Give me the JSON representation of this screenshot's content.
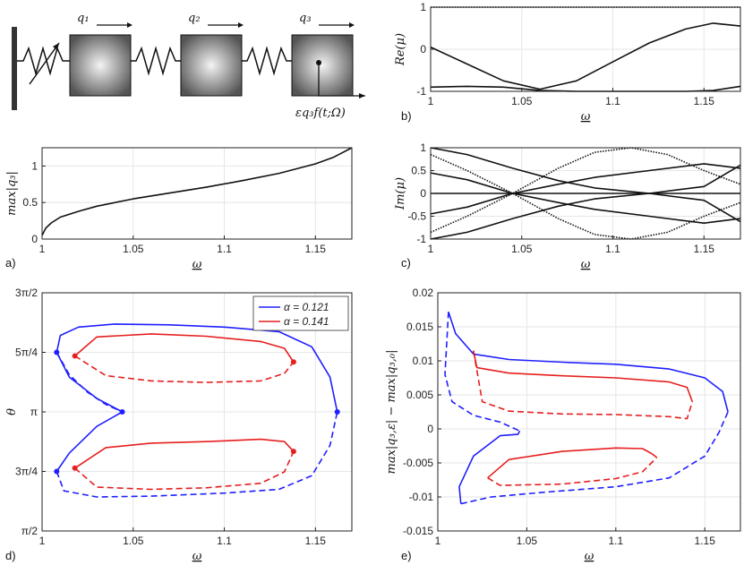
{
  "diagram": {
    "q1": "q₁",
    "q2": "q₂",
    "q3": "q₃",
    "forcing": "εq₃f(t;Ω)"
  },
  "panel_labels": {
    "a": "a)",
    "b": "b)",
    "c": "c)",
    "d": "d)",
    "e": "e)"
  },
  "colors": {
    "blue": "#1f1fff",
    "red": "#e61e1e",
    "black": "#111111",
    "grid": "#e6e6e6"
  },
  "chart_data": [
    {
      "id": "a",
      "type": "line",
      "title": "",
      "xlabel": "ω",
      "ylabel": "max|q₃|",
      "xlim": [
        1,
        1.17
      ],
      "ylim": [
        0,
        1.25
      ],
      "xticks": [
        1,
        1.05,
        1.1,
        1.15
      ],
      "xtick_labels": [
        "1",
        "1.05",
        "1.1",
        "1.15"
      ],
      "yticks": [
        0,
        0.5,
        1
      ],
      "ytick_labels": [
        "0",
        "0.5",
        "1"
      ],
      "series": [
        {
          "name": "max|q3|",
          "color": "#111111",
          "dash": false,
          "x": [
            1,
            1.002,
            1.005,
            1.01,
            1.02,
            1.03,
            1.05,
            1.07,
            1.09,
            1.11,
            1.13,
            1.15,
            1.16,
            1.17
          ],
          "y": [
            0.05,
            0.15,
            0.22,
            0.3,
            0.38,
            0.45,
            0.55,
            0.63,
            0.71,
            0.8,
            0.9,
            1.03,
            1.12,
            1.25
          ]
        }
      ]
    },
    {
      "id": "b",
      "type": "line",
      "xlabel": "ω",
      "ylabel": "Re(μ)",
      "xlim": [
        1,
        1.17
      ],
      "ylim": [
        -1,
        1
      ],
      "xticks": [
        1,
        1.05,
        1.1,
        1.15
      ],
      "xtick_labels": [
        "1",
        "1.05",
        "1.1",
        "1.15"
      ],
      "yticks": [
        -1,
        0,
        1
      ],
      "ytick_labels": [
        "-1",
        "0",
        "1"
      ],
      "series": [
        {
          "name": "unit",
          "color": "#111111",
          "dash": true,
          "x": [
            1,
            1.17
          ],
          "y": [
            1,
            1
          ]
        },
        {
          "name": "branch1",
          "color": "#111111",
          "dash": false,
          "x": [
            1,
            1.02,
            1.04,
            1.06,
            1.08,
            1.1,
            1.12,
            1.14,
            1.155,
            1.17
          ],
          "y": [
            0.05,
            -0.35,
            -0.75,
            -0.95,
            -0.75,
            -0.3,
            0.15,
            0.48,
            0.62,
            0.55
          ]
        },
        {
          "name": "branch2",
          "color": "#111111",
          "dash": false,
          "x": [
            1,
            1.02,
            1.04,
            1.06,
            1.08,
            1.1,
            1.12,
            1.14,
            1.155,
            1.17
          ],
          "y": [
            -0.9,
            -0.88,
            -0.9,
            -0.98,
            -1,
            -1,
            -1,
            -1,
            -0.98,
            -0.88
          ]
        }
      ]
    },
    {
      "id": "c",
      "type": "line",
      "xlabel": "ω",
      "ylabel": "Im(μ)",
      "xlim": [
        1,
        1.17
      ],
      "ylim": [
        -1,
        1
      ],
      "xticks": [
        1,
        1.05,
        1.1,
        1.15
      ],
      "xtick_labels": [
        "1",
        "1.05",
        "1.1",
        "1.15"
      ],
      "yticks": [
        -1,
        -0.5,
        0,
        0.5,
        1
      ],
      "ytick_labels": [
        "-1",
        "-0.5",
        "0",
        "0.5",
        "1"
      ],
      "series": [
        {
          "name": "zero",
          "color": "#111111",
          "dash": false,
          "x": [
            1,
            1.17
          ],
          "y": [
            0,
            0
          ]
        },
        {
          "name": "s1",
          "color": "#111111",
          "dash": false,
          "x": [
            1,
            1.02,
            1.045,
            1.07,
            1.09,
            1.12,
            1.15,
            1.17
          ],
          "y": [
            1,
            0.85,
            0.55,
            0.28,
            0.12,
            0.0,
            -0.15,
            -0.62
          ]
        },
        {
          "name": "s2",
          "color": "#111111",
          "dash": false,
          "x": [
            1,
            1.02,
            1.045,
            1.07,
            1.09,
            1.12,
            1.15,
            1.17
          ],
          "y": [
            -1,
            -0.85,
            -0.55,
            -0.28,
            -0.12,
            0.0,
            0.15,
            0.62
          ]
        },
        {
          "name": "s3",
          "color": "#111111",
          "dash": false,
          "x": [
            1,
            1.02,
            1.045,
            1.07,
            1.09,
            1.12,
            1.15,
            1.17
          ],
          "y": [
            0.45,
            0.3,
            0.0,
            -0.2,
            -0.35,
            -0.5,
            -0.65,
            -0.55
          ]
        },
        {
          "name": "s4",
          "color": "#111111",
          "dash": false,
          "x": [
            1,
            1.02,
            1.045,
            1.07,
            1.09,
            1.12,
            1.15,
            1.17
          ],
          "y": [
            -0.45,
            -0.3,
            0.0,
            0.2,
            0.35,
            0.5,
            0.65,
            0.55
          ]
        },
        {
          "name": "s5",
          "color": "#111111",
          "dash": true,
          "x": [
            1,
            1.02,
            1.045,
            1.07,
            1.09,
            1.11,
            1.13,
            1.15,
            1.17
          ],
          "y": [
            0.85,
            0.5,
            0.0,
            -0.55,
            -0.9,
            -1,
            -0.85,
            -0.5,
            -0.2
          ]
        },
        {
          "name": "s6",
          "color": "#111111",
          "dash": true,
          "x": [
            1,
            1.02,
            1.045,
            1.07,
            1.09,
            1.11,
            1.13,
            1.15,
            1.17
          ],
          "y": [
            -0.85,
            -0.5,
            0.0,
            0.55,
            0.9,
            1,
            0.85,
            0.5,
            0.2
          ]
        }
      ]
    },
    {
      "id": "d",
      "type": "line",
      "xlabel": "ω",
      "ylabel": "θ",
      "xlim": [
        1,
        1.17
      ],
      "ylim": [
        1.5708,
        4.7124
      ],
      "xticks": [
        1,
        1.05,
        1.1,
        1.15
      ],
      "xtick_labels": [
        "1",
        "1.05",
        "1.1",
        "1.15"
      ],
      "yticks": [
        1.5708,
        2.3562,
        3.1416,
        3.927,
        4.7124
      ],
      "ytick_labels": [
        "π/2",
        "3π/4",
        "π",
        "5π/4",
        "3π/2"
      ],
      "legend": {
        "position": "top-right",
        "entries": [
          {
            "label": "α = 0.121",
            "color": "#1f1fff"
          },
          {
            "label": "α = 0.141",
            "color": "#e61e1e"
          }
        ]
      },
      "series": [
        {
          "name": "blue-solid-upper",
          "color": "#1f1fff",
          "dash": false,
          "x": [
            1.044,
            1.03,
            1.015,
            1.008,
            1.01,
            1.02,
            1.04,
            1.07,
            1.1,
            1.13,
            1.148,
            1.158,
            1.162
          ],
          "y": [
            3.1416,
            3.32,
            3.6,
            3.927,
            4.15,
            4.26,
            4.3,
            4.29,
            4.26,
            4.2,
            4.0,
            3.6,
            3.1416
          ]
        },
        {
          "name": "blue-dash-upper",
          "color": "#1f1fff",
          "dash": true,
          "x": [
            1.008,
            1.015,
            1.025,
            1.035,
            1.044
          ],
          "y": [
            3.927,
            3.63,
            3.4,
            3.24,
            3.1416
          ]
        },
        {
          "name": "blue-solid-lower",
          "color": "#1f1fff",
          "dash": false,
          "x": [
            1.044,
            1.03,
            1.015,
            1.008
          ],
          "y": [
            3.1416,
            2.95,
            2.6,
            2.356
          ]
        },
        {
          "name": "blue-dash-lower",
          "color": "#1f1fff",
          "dash": true,
          "x": [
            1.008,
            1.012,
            1.03,
            1.06,
            1.1,
            1.13,
            1.148,
            1.158,
            1.162
          ],
          "y": [
            2.356,
            2.1,
            2.02,
            2.03,
            2.07,
            2.12,
            2.3,
            2.7,
            3.1416
          ]
        },
        {
          "name": "red-solid-upper",
          "color": "#e61e1e",
          "dash": false,
          "x": [
            1.018,
            1.03,
            1.06,
            1.09,
            1.12,
            1.133,
            1.138
          ],
          "y": [
            3.88,
            4.13,
            4.17,
            4.14,
            4.07,
            3.98,
            3.8
          ]
        },
        {
          "name": "red-dash-upper",
          "color": "#e61e1e",
          "dash": true,
          "x": [
            1.018,
            1.035,
            1.06,
            1.09,
            1.12,
            1.133,
            1.138
          ],
          "y": [
            3.88,
            3.62,
            3.55,
            3.53,
            3.55,
            3.65,
            3.8
          ]
        },
        {
          "name": "red-solid-lower",
          "color": "#e61e1e",
          "dash": false,
          "x": [
            1.018,
            1.035,
            1.06,
            1.09,
            1.12,
            1.133,
            1.138
          ],
          "y": [
            2.4,
            2.67,
            2.73,
            2.75,
            2.78,
            2.75,
            2.62
          ]
        },
        {
          "name": "red-dash-lower",
          "color": "#e61e1e",
          "dash": true,
          "x": [
            1.018,
            1.03,
            1.06,
            1.09,
            1.12,
            1.133,
            1.138
          ],
          "y": [
            2.4,
            2.15,
            2.12,
            2.14,
            2.2,
            2.35,
            2.62
          ]
        }
      ],
      "points": [
        {
          "x": 1.008,
          "y": 3.927,
          "color": "#1f1fff"
        },
        {
          "x": 1.008,
          "y": 2.356,
          "color": "#1f1fff"
        },
        {
          "x": 1.044,
          "y": 3.1416,
          "color": "#1f1fff"
        },
        {
          "x": 1.162,
          "y": 3.1416,
          "color": "#1f1fff"
        },
        {
          "x": 1.018,
          "y": 3.88,
          "color": "#e61e1e"
        },
        {
          "x": 1.018,
          "y": 2.4,
          "color": "#e61e1e"
        },
        {
          "x": 1.138,
          "y": 3.8,
          "color": "#e61e1e"
        },
        {
          "x": 1.138,
          "y": 2.62,
          "color": "#e61e1e"
        }
      ]
    },
    {
      "id": "e",
      "type": "line",
      "xlabel": "ω",
      "ylabel": "max|q₃,ε| − max|q₃,₀|",
      "xlim": [
        1,
        1.17
      ],
      "ylim": [
        -0.015,
        0.02
      ],
      "xticks": [
        1,
        1.05,
        1.1,
        1.15
      ],
      "xtick_labels": [
        "1",
        "1.05",
        "1.1",
        "1.15"
      ],
      "yticks": [
        -0.015,
        -0.01,
        -0.005,
        0,
        0.005,
        0.01,
        0.015,
        0.02
      ],
      "ytick_labels": [
        "-0.015",
        "-0.01",
        "-0.005",
        "0",
        "0.005",
        "0.01",
        "0.015",
        "0.02"
      ],
      "series": [
        {
          "name": "blue-solid-upper",
          "color": "#1f1fff",
          "dash": false,
          "x": [
            1.006,
            1.01,
            1.02,
            1.04,
            1.07,
            1.1,
            1.13,
            1.15,
            1.16,
            1.163
          ],
          "y": [
            0.0172,
            0.014,
            0.011,
            0.0102,
            0.0098,
            0.0095,
            0.0088,
            0.0075,
            0.0055,
            0.0025
          ]
        },
        {
          "name": "blue-dash-upper",
          "color": "#1f1fff",
          "dash": true,
          "x": [
            1.006,
            1.004,
            1.008,
            1.02,
            1.035,
            1.046
          ],
          "y": [
            0.0172,
            0.008,
            0.004,
            0.002,
            0.001,
            -0.0003
          ]
        },
        {
          "name": "blue-solid-lower",
          "color": "#1f1fff",
          "dash": false,
          "x": [
            1.046,
            1.045,
            1.035,
            1.02,
            1.012,
            1.013
          ],
          "y": [
            -0.0003,
            -0.0008,
            -0.001,
            -0.004,
            -0.0085,
            -0.011
          ]
        },
        {
          "name": "blue-dash-lower",
          "color": "#1f1fff",
          "dash": true,
          "x": [
            1.013,
            1.03,
            1.06,
            1.1,
            1.13,
            1.15,
            1.158,
            1.163
          ],
          "y": [
            -0.011,
            -0.01,
            -0.0093,
            -0.0085,
            -0.0072,
            -0.004,
            -0.0005,
            0.0025
          ]
        },
        {
          "name": "red-solid-upper",
          "color": "#e61e1e",
          "dash": false,
          "x": [
            1.02,
            1.022,
            1.04,
            1.07,
            1.1,
            1.13,
            1.14,
            1.143
          ],
          "y": [
            0.0115,
            0.009,
            0.0082,
            0.0078,
            0.0075,
            0.0069,
            0.0061,
            0.004
          ]
        },
        {
          "name": "red-dash-upper",
          "color": "#e61e1e",
          "dash": true,
          "x": [
            1.02,
            1.025,
            1.04,
            1.07,
            1.1,
            1.13,
            1.14,
            1.143
          ],
          "y": [
            0.0115,
            0.004,
            0.0026,
            0.0022,
            0.0021,
            0.0018,
            0.0015,
            0.004
          ]
        },
        {
          "name": "red-solid-lower",
          "color": "#e61e1e",
          "dash": false,
          "x": [
            1.028,
            1.04,
            1.07,
            1.1,
            1.115,
            1.12,
            1.123
          ],
          "y": [
            -0.0072,
            -0.0045,
            -0.0033,
            -0.0028,
            -0.0029,
            -0.0036,
            -0.0042
          ]
        },
        {
          "name": "red-dash-lower",
          "color": "#e61e1e",
          "dash": true,
          "x": [
            1.028,
            1.035,
            1.07,
            1.1,
            1.115,
            1.12,
            1.123
          ],
          "y": [
            -0.0072,
            -0.0083,
            -0.0081,
            -0.0073,
            -0.0063,
            -0.005,
            -0.0042
          ]
        }
      ]
    }
  ]
}
